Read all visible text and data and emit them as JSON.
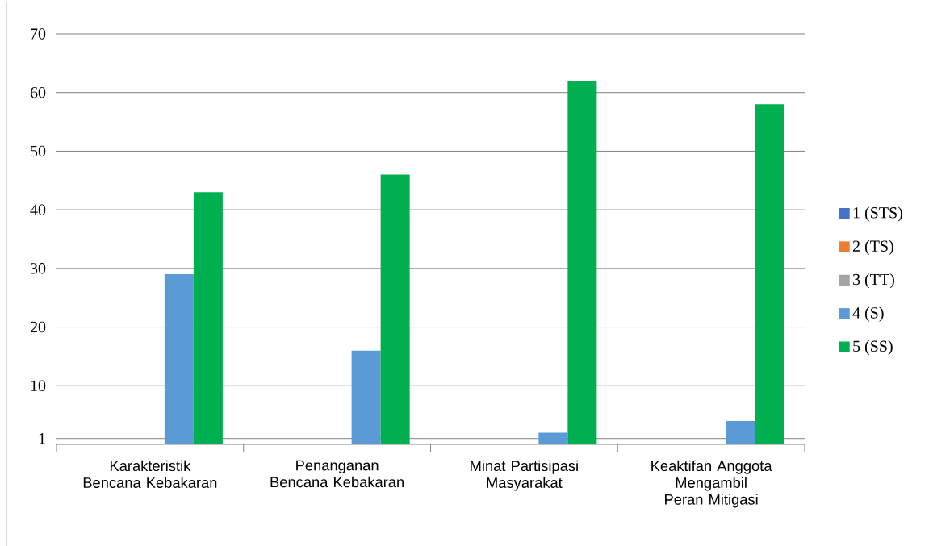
{
  "chart_data": {
    "type": "bar",
    "categories": [
      "Karakteristik Bencana Kebakaran",
      "Penanganan Bencana Kebakaran",
      "Minat Partisipasi Masyarakat",
      "Keaktifan Anggota Mengambil Peran Mitigasi"
    ],
    "series": [
      {
        "name": "1 (STS)",
        "color": "#4472c4",
        "values": [
          0,
          0,
          0,
          0
        ]
      },
      {
        "name": "2 (TS)",
        "color": "#ed7d31",
        "values": [
          0,
          0,
          0,
          0
        ]
      },
      {
        "name": "3 (TT)",
        "color": "#a5a5a5",
        "values": [
          0,
          0,
          0,
          0
        ]
      },
      {
        "name": "4 (S)",
        "color": "#5b9bd5",
        "values": [
          29,
          16,
          2,
          4
        ]
      },
      {
        "name": "5 (SS)",
        "color": "#00b050",
        "values": [
          43,
          46,
          62,
          58
        ]
      }
    ],
    "ylim": [
      0,
      70
    ],
    "yticks": [
      1,
      10,
      20,
      30,
      40,
      50,
      60,
      70
    ],
    "grid": "y",
    "legend": "right"
  }
}
